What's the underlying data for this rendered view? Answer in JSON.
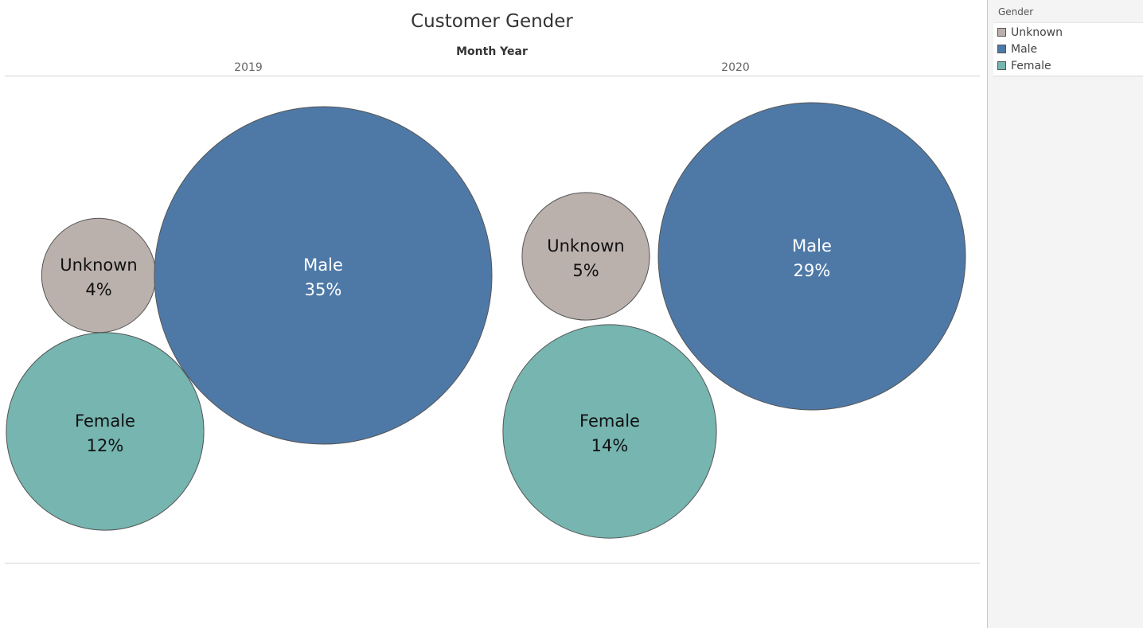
{
  "chart_data": {
    "type": "bubble",
    "title": "Customer Gender",
    "column_axis_title": "Month Year",
    "columns": [
      "2019",
      "2020"
    ],
    "categories": [
      "Unknown",
      "Male",
      "Female"
    ],
    "series": [
      {
        "name": "2019",
        "values": [
          4,
          35,
          12
        ],
        "labels": [
          "4%",
          "35%",
          "12%"
        ]
      },
      {
        "name": "2020",
        "values": [
          5,
          29,
          14
        ],
        "labels": [
          "5%",
          "29%",
          "14%"
        ]
      }
    ],
    "legend": {
      "title": "Gender",
      "placement": "right",
      "items": [
        {
          "label": "Unknown",
          "color": "#bab0ac"
        },
        {
          "label": "Male",
          "color": "#4e79a7"
        },
        {
          "label": "Female",
          "color": "#76b5b0"
        }
      ]
    },
    "colors": {
      "Unknown": "#bab0ac",
      "Male": "#4e79a7",
      "Female": "#76b5b0"
    },
    "label_colors": {
      "Unknown": "#111111",
      "Male": "#ffffff",
      "Female": "#111111"
    }
  }
}
